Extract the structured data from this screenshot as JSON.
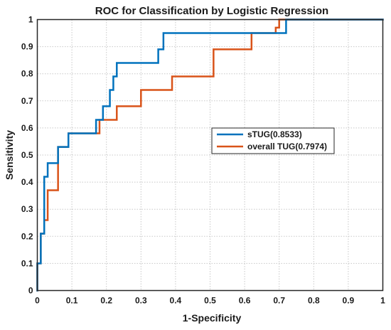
{
  "chart_data": {
    "type": "line",
    "title": "ROC for Classification by Logistic Regression",
    "xlabel": "1-Specificity",
    "ylabel": "Sensitivity",
    "xlim": [
      0,
      1
    ],
    "ylim": [
      0,
      1
    ],
    "xticks": [
      "0",
      "0.1",
      "0.2",
      "0.3",
      "0.4",
      "0.5",
      "0.6",
      "0.7",
      "0.8",
      "0.9",
      "1"
    ],
    "yticks": [
      "0",
      "0.1",
      "0.2",
      "0.3",
      "0.4",
      "0.5",
      "0.6",
      "0.7",
      "0.8",
      "0.9",
      "1"
    ],
    "grid": true,
    "legend_position": "center-right",
    "series": [
      {
        "name": "sTUG(0.8533)",
        "color": "#0072BD",
        "x": [
          0,
          0,
          0.01,
          0.01,
          0.02,
          0.02,
          0.03,
          0.03,
          0.06,
          0.06,
          0.09,
          0.09,
          0.17,
          0.17,
          0.19,
          0.19,
          0.21,
          0.21,
          0.22,
          0.22,
          0.23,
          0.23,
          0.27,
          0.27,
          0.35,
          0.35,
          0.365,
          0.365,
          0.7,
          0.7,
          0.72,
          0.72,
          1
        ],
        "y": [
          0,
          0.1,
          0.1,
          0.21,
          0.21,
          0.42,
          0.42,
          0.47,
          0.47,
          0.53,
          0.53,
          0.58,
          0.58,
          0.63,
          0.63,
          0.68,
          0.68,
          0.74,
          0.74,
          0.79,
          0.79,
          0.84,
          0.84,
          0.84,
          0.84,
          0.89,
          0.89,
          0.95,
          0.95,
          0.95,
          0.95,
          1,
          1
        ]
      },
      {
        "name": "overall  TUG(0.7974)",
        "color": "#D95319",
        "x": [
          0,
          0,
          0.01,
          0.01,
          0.02,
          0.02,
          0.03,
          0.03,
          0.06,
          0.06,
          0.09,
          0.09,
          0.18,
          0.18,
          0.23,
          0.23,
          0.3,
          0.3,
          0.39,
          0.39,
          0.51,
          0.51,
          0.62,
          0.62,
          0.69,
          0.69,
          0.7,
          0.7,
          1
        ],
        "y": [
          0,
          0.1,
          0.1,
          0.21,
          0.21,
          0.26,
          0.26,
          0.37,
          0.37,
          0.53,
          0.53,
          0.58,
          0.58,
          0.63,
          0.63,
          0.68,
          0.68,
          0.74,
          0.74,
          0.79,
          0.79,
          0.89,
          0.89,
          0.95,
          0.95,
          0.97,
          0.97,
          1,
          1
        ]
      }
    ]
  }
}
